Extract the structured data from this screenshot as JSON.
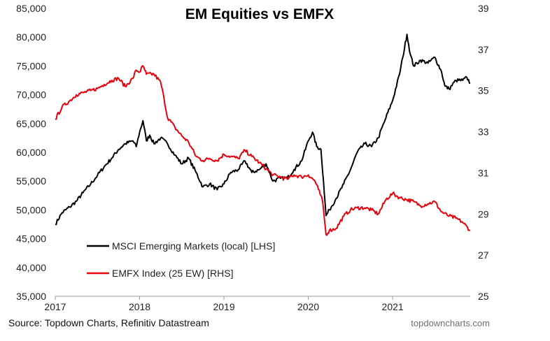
{
  "chart_data": {
    "type": "line",
    "title": "EM Equities vs EMFX",
    "source": "Source: Topdown Charts, Refinitiv Datastream",
    "brand": "topdowncharts.com",
    "xlabel": "",
    "ylabel_left": "",
    "ylabel_right": "",
    "x_ticks": [
      "2017",
      "2018",
      "2019",
      "2020",
      "2021"
    ],
    "x_range": [
      2017.0,
      2021.92
    ],
    "y_left_range": [
      35000,
      85000
    ],
    "y_left_ticks": [
      "35,000",
      "40,000",
      "45,000",
      "50,000",
      "55,000",
      "60,000",
      "65,000",
      "70,000",
      "75,000",
      "80,000",
      "85,000"
    ],
    "y_right_range": [
      25,
      39
    ],
    "y_right_ticks": [
      "25",
      "27",
      "29",
      "31",
      "33",
      "35",
      "37",
      "39"
    ],
    "grid": false,
    "legend_position": "bottom-left",
    "series": [
      {
        "name": "MSCI Emerging Markets (local) [LHS]",
        "axis": "left",
        "color": "#000000",
        "points": [
          [
            2017.0,
            47500
          ],
          [
            2017.08,
            49500
          ],
          [
            2017.17,
            50500
          ],
          [
            2017.25,
            51500
          ],
          [
            2017.33,
            53000
          ],
          [
            2017.42,
            54500
          ],
          [
            2017.5,
            56000
          ],
          [
            2017.58,
            57500
          ],
          [
            2017.67,
            59000
          ],
          [
            2017.75,
            60500
          ],
          [
            2017.83,
            61500
          ],
          [
            2017.92,
            62000
          ],
          [
            2017.96,
            61000
          ],
          [
            2018.0,
            63500
          ],
          [
            2018.04,
            65500
          ],
          [
            2018.08,
            62000
          ],
          [
            2018.12,
            63000
          ],
          [
            2018.17,
            61500
          ],
          [
            2018.25,
            62500
          ],
          [
            2018.33,
            61500
          ],
          [
            2018.42,
            59500
          ],
          [
            2018.5,
            58000
          ],
          [
            2018.58,
            59000
          ],
          [
            2018.67,
            56500
          ],
          [
            2018.75,
            54000
          ],
          [
            2018.83,
            54500
          ],
          [
            2018.92,
            53500
          ],
          [
            2019.0,
            54500
          ],
          [
            2019.08,
            56500
          ],
          [
            2019.17,
            57000
          ],
          [
            2019.25,
            58500
          ],
          [
            2019.33,
            56500
          ],
          [
            2019.42,
            57000
          ],
          [
            2019.5,
            58000
          ],
          [
            2019.58,
            55000
          ],
          [
            2019.67,
            55500
          ],
          [
            2019.75,
            55500
          ],
          [
            2019.83,
            57000
          ],
          [
            2019.92,
            58500
          ],
          [
            2020.0,
            62000
          ],
          [
            2020.05,
            63500
          ],
          [
            2020.1,
            61000
          ],
          [
            2020.15,
            60500
          ],
          [
            2020.18,
            55000
          ],
          [
            2020.21,
            49000
          ],
          [
            2020.25,
            50000
          ],
          [
            2020.33,
            52000
          ],
          [
            2020.42,
            54500
          ],
          [
            2020.5,
            57000
          ],
          [
            2020.58,
            60000
          ],
          [
            2020.67,
            61500
          ],
          [
            2020.75,
            61000
          ],
          [
            2020.83,
            62500
          ],
          [
            2020.92,
            66000
          ],
          [
            2021.0,
            69000
          ],
          [
            2021.08,
            73500
          ],
          [
            2021.12,
            76500
          ],
          [
            2021.17,
            80500
          ],
          [
            2021.21,
            77000
          ],
          [
            2021.25,
            75000
          ],
          [
            2021.33,
            76000
          ],
          [
            2021.42,
            75500
          ],
          [
            2021.5,
            76500
          ],
          [
            2021.58,
            74000
          ],
          [
            2021.62,
            71500
          ],
          [
            2021.67,
            71000
          ],
          [
            2021.75,
            72500
          ],
          [
            2021.83,
            72500
          ],
          [
            2021.88,
            73000
          ],
          [
            2021.92,
            72000
          ]
        ]
      },
      {
        "name": "EMFX Index (25 EW) [RHS]",
        "axis": "right",
        "color": "#e8000b",
        "points": [
          [
            2017.0,
            33.6
          ],
          [
            2017.08,
            34.2
          ],
          [
            2017.17,
            34.5
          ],
          [
            2017.25,
            34.8
          ],
          [
            2017.33,
            34.9
          ],
          [
            2017.42,
            35.0
          ],
          [
            2017.5,
            35.1
          ],
          [
            2017.58,
            35.3
          ],
          [
            2017.67,
            35.5
          ],
          [
            2017.75,
            35.6
          ],
          [
            2017.83,
            35.2
          ],
          [
            2017.92,
            35.6
          ],
          [
            2017.96,
            36.0
          ],
          [
            2018.0,
            35.9
          ],
          [
            2018.04,
            36.2
          ],
          [
            2018.08,
            35.8
          ],
          [
            2018.17,
            35.8
          ],
          [
            2018.25,
            35.4
          ],
          [
            2018.29,
            34.6
          ],
          [
            2018.33,
            33.7
          ],
          [
            2018.42,
            33.2
          ],
          [
            2018.5,
            32.8
          ],
          [
            2018.58,
            32.5
          ],
          [
            2018.67,
            31.8
          ],
          [
            2018.75,
            31.6
          ],
          [
            2018.83,
            31.7
          ],
          [
            2018.92,
            31.6
          ],
          [
            2019.0,
            31.9
          ],
          [
            2019.08,
            31.8
          ],
          [
            2019.17,
            31.7
          ],
          [
            2019.25,
            32.1
          ],
          [
            2019.33,
            31.8
          ],
          [
            2019.42,
            31.5
          ],
          [
            2019.5,
            31.2
          ],
          [
            2019.58,
            30.9
          ],
          [
            2019.67,
            30.8
          ],
          [
            2019.75,
            30.7
          ],
          [
            2019.83,
            30.9
          ],
          [
            2019.92,
            30.8
          ],
          [
            2020.0,
            30.9
          ],
          [
            2020.08,
            30.6
          ],
          [
            2020.12,
            30.2
          ],
          [
            2020.17,
            29.6
          ],
          [
            2020.21,
            28.0
          ],
          [
            2020.25,
            28.2
          ],
          [
            2020.33,
            28.3
          ],
          [
            2020.42,
            28.9
          ],
          [
            2020.5,
            29.2
          ],
          [
            2020.58,
            29.3
          ],
          [
            2020.67,
            29.3
          ],
          [
            2020.75,
            29.2
          ],
          [
            2020.83,
            29.0
          ],
          [
            2020.92,
            29.7
          ],
          [
            2021.0,
            30.0
          ],
          [
            2021.08,
            29.8
          ],
          [
            2021.17,
            29.7
          ],
          [
            2021.25,
            29.6
          ],
          [
            2021.33,
            29.4
          ],
          [
            2021.42,
            29.5
          ],
          [
            2021.5,
            29.6
          ],
          [
            2021.58,
            29.1
          ],
          [
            2021.67,
            28.9
          ],
          [
            2021.75,
            28.8
          ],
          [
            2021.83,
            28.6
          ],
          [
            2021.92,
            28.2
          ]
        ]
      }
    ]
  }
}
